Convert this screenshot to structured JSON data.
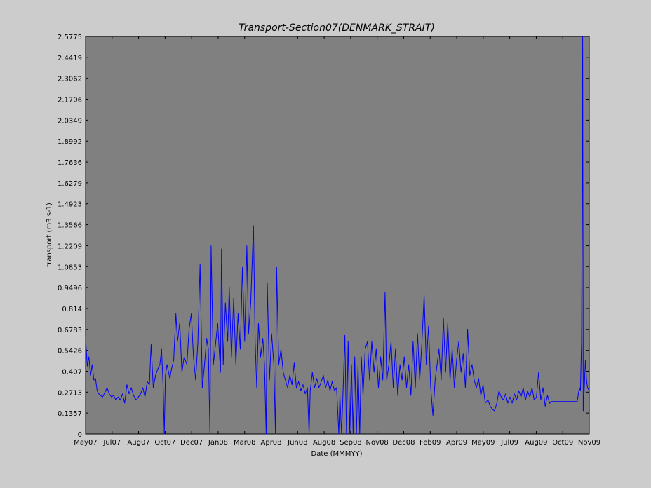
{
  "chart_data": {
    "type": "line",
    "title": "Transport-Section07(DENMARK_STRAIT)",
    "xlabel": "Date (MMMYY)",
    "ylabel": "transport (m3 s-1)",
    "x_ticks": [
      "May07",
      "Jul07",
      "Aug07",
      "Oct07",
      "Dec07",
      "Jan08",
      "Mar08",
      "Apr08",
      "Jun08",
      "Aug08",
      "Sep08",
      "Nov08",
      "Dec08",
      "Feb09",
      "Apr09",
      "May09",
      "Jul09",
      "Aug09",
      "Oct09",
      "Nov09"
    ],
    "y_ticks": [
      "0",
      "0.1357",
      "0.2713",
      "0.407",
      "0.5426",
      "0.6783",
      "0.814",
      "0.9496",
      "1.0853",
      "1.2209",
      "1.3566",
      "1.4923",
      "1.6279",
      "1.7636",
      "1.8992",
      "2.0349",
      "2.1706",
      "2.3062",
      "2.4419",
      "2.5775"
    ],
    "xlim": [
      "2007-05-01",
      "2009-11-01"
    ],
    "ylim": [
      0,
      2.5775
    ],
    "grid": false,
    "background_color": "#808080",
    "line_color": "#0000ff",
    "series": [
      {
        "points": [
          [
            "2007-05-01",
            0.62
          ],
          [
            "2007-05-04",
            0.44
          ],
          [
            "2007-05-07",
            0.5
          ],
          [
            "2007-05-10",
            0.38
          ],
          [
            "2007-05-13",
            0.45
          ],
          [
            "2007-05-16",
            0.35
          ],
          [
            "2007-05-19",
            0.36
          ],
          [
            "2007-05-22",
            0.28
          ],
          [
            "2007-05-25",
            0.26
          ],
          [
            "2007-05-28",
            0.25
          ],
          [
            "2007-06-01",
            0.24
          ],
          [
            "2007-06-05",
            0.27
          ],
          [
            "2007-06-09",
            0.3
          ],
          [
            "2007-06-13",
            0.26
          ],
          [
            "2007-06-17",
            0.24
          ],
          [
            "2007-06-21",
            0.25
          ],
          [
            "2007-06-25",
            0.22
          ],
          [
            "2007-06-29",
            0.24
          ],
          [
            "2007-07-03",
            0.22
          ],
          [
            "2007-07-07",
            0.26
          ],
          [
            "2007-07-11",
            0.2
          ],
          [
            "2007-07-15",
            0.32
          ],
          [
            "2007-07-19",
            0.26
          ],
          [
            "2007-07-23",
            0.3
          ],
          [
            "2007-07-27",
            0.25
          ],
          [
            "2007-08-01",
            0.22
          ],
          [
            "2007-08-05",
            0.24
          ],
          [
            "2007-08-09",
            0.26
          ],
          [
            "2007-08-13",
            0.3
          ],
          [
            "2007-08-17",
            0.24
          ],
          [
            "2007-08-21",
            0.34
          ],
          [
            "2007-08-25",
            0.32
          ],
          [
            "2007-08-28",
            0.58
          ],
          [
            "2007-09-01",
            0.3
          ],
          [
            "2007-09-05",
            0.38
          ],
          [
            "2007-09-09",
            0.42
          ],
          [
            "2007-09-13",
            0.45
          ],
          [
            "2007-09-16",
            0.55
          ],
          [
            "2007-09-19",
            0.3
          ],
          [
            "2007-09-21",
            0.0
          ],
          [
            "2007-09-23",
            0.38
          ],
          [
            "2007-09-26",
            0.45
          ],
          [
            "2007-10-01",
            0.36
          ],
          [
            "2007-10-04",
            0.42
          ],
          [
            "2007-10-08",
            0.48
          ],
          [
            "2007-10-12",
            0.78
          ],
          [
            "2007-10-15",
            0.6
          ],
          [
            "2007-10-19",
            0.72
          ],
          [
            "2007-10-23",
            0.4
          ],
          [
            "2007-10-27",
            0.5
          ],
          [
            "2007-11-01",
            0.45
          ],
          [
            "2007-11-05",
            0.68
          ],
          [
            "2007-11-09",
            0.78
          ],
          [
            "2007-11-13",
            0.5
          ],
          [
            "2007-11-17",
            0.35
          ],
          [
            "2007-11-21",
            0.6
          ],
          [
            "2007-11-25",
            1.1
          ],
          [
            "2007-11-29",
            0.3
          ],
          [
            "2007-12-03",
            0.45
          ],
          [
            "2007-12-07",
            0.62
          ],
          [
            "2007-12-10",
            0.55
          ],
          [
            "2007-12-13",
            0.0
          ],
          [
            "2007-12-15",
            1.22
          ],
          [
            "2007-12-19",
            0.45
          ],
          [
            "2007-12-23",
            0.58
          ],
          [
            "2007-12-27",
            0.72
          ],
          [
            "2008-01-01",
            0.4
          ],
          [
            "2008-01-03",
            1.2
          ],
          [
            "2008-01-06",
            0.45
          ],
          [
            "2008-01-10",
            0.85
          ],
          [
            "2008-01-14",
            0.6
          ],
          [
            "2008-01-17",
            0.95
          ],
          [
            "2008-01-21",
            0.5
          ],
          [
            "2008-01-25",
            0.88
          ],
          [
            "2008-01-29",
            0.45
          ],
          [
            "2008-02-02",
            0.78
          ],
          [
            "2008-02-06",
            0.55
          ],
          [
            "2008-02-10",
            1.08
          ],
          [
            "2008-02-14",
            0.6
          ],
          [
            "2008-02-18",
            1.22
          ],
          [
            "2008-02-21",
            0.65
          ],
          [
            "2008-02-25",
            0.85
          ],
          [
            "2008-03-01",
            1.35
          ],
          [
            "2008-03-04",
            0.6
          ],
          [
            "2008-03-07",
            0.3
          ],
          [
            "2008-03-10",
            0.72
          ],
          [
            "2008-03-14",
            0.5
          ],
          [
            "2008-03-18",
            0.62
          ],
          [
            "2008-03-21",
            0.45
          ],
          [
            "2008-03-24",
            0.0
          ],
          [
            "2008-03-26",
            0.98
          ],
          [
            "2008-03-30",
            0.35
          ],
          [
            "2008-04-03",
            0.65
          ],
          [
            "2008-04-07",
            0.45
          ],
          [
            "2008-04-10",
            0.0
          ],
          [
            "2008-04-12",
            1.08
          ],
          [
            "2008-04-16",
            0.45
          ],
          [
            "2008-04-20",
            0.55
          ],
          [
            "2008-04-24",
            0.4
          ],
          [
            "2008-04-28",
            0.35
          ],
          [
            "2008-05-02",
            0.3
          ],
          [
            "2008-05-06",
            0.38
          ],
          [
            "2008-05-10",
            0.32
          ],
          [
            "2008-05-14",
            0.46
          ],
          [
            "2008-05-18",
            0.3
          ],
          [
            "2008-05-22",
            0.34
          ],
          [
            "2008-05-26",
            0.28
          ],
          [
            "2008-05-30",
            0.32
          ],
          [
            "2008-06-03",
            0.26
          ],
          [
            "2008-06-07",
            0.3
          ],
          [
            "2008-06-10",
            0.0
          ],
          [
            "2008-06-12",
            0.28
          ],
          [
            "2008-06-16",
            0.4
          ],
          [
            "2008-06-20",
            0.3
          ],
          [
            "2008-06-24",
            0.36
          ],
          [
            "2008-06-28",
            0.3
          ],
          [
            "2008-07-02",
            0.34
          ],
          [
            "2008-07-06",
            0.38
          ],
          [
            "2008-07-10",
            0.3
          ],
          [
            "2008-07-14",
            0.35
          ],
          [
            "2008-07-18",
            0.28
          ],
          [
            "2008-07-22",
            0.34
          ],
          [
            "2008-07-26",
            0.28
          ],
          [
            "2008-07-30",
            0.3
          ],
          [
            "2008-08-03",
            0.0
          ],
          [
            "2008-08-05",
            0.25
          ],
          [
            "2008-08-08",
            0.0
          ],
          [
            "2008-08-11",
            0.3
          ],
          [
            "2008-08-14",
            0.64
          ],
          [
            "2008-08-17",
            0.0
          ],
          [
            "2008-08-20",
            0.6
          ],
          [
            "2008-08-23",
            0.0
          ],
          [
            "2008-08-26",
            0.45
          ],
          [
            "2008-08-29",
            0.0
          ],
          [
            "2008-09-01",
            0.5
          ],
          [
            "2008-09-04",
            0.0
          ],
          [
            "2008-09-07",
            0.45
          ],
          [
            "2008-09-10",
            0.0
          ],
          [
            "2008-09-13",
            0.5
          ],
          [
            "2008-09-16",
            0.25
          ],
          [
            "2008-09-20",
            0.55
          ],
          [
            "2008-09-24",
            0.6
          ],
          [
            "2008-09-28",
            0.35
          ],
          [
            "2008-10-02",
            0.6
          ],
          [
            "2008-10-06",
            0.4
          ],
          [
            "2008-10-10",
            0.55
          ],
          [
            "2008-10-14",
            0.3
          ],
          [
            "2008-10-18",
            0.5
          ],
          [
            "2008-10-22",
            0.35
          ],
          [
            "2008-10-26",
            0.92
          ],
          [
            "2008-10-29",
            0.35
          ],
          [
            "2008-11-02",
            0.45
          ],
          [
            "2008-11-06",
            0.6
          ],
          [
            "2008-11-10",
            0.3
          ],
          [
            "2008-11-14",
            0.55
          ],
          [
            "2008-11-18",
            0.25
          ],
          [
            "2008-11-22",
            0.45
          ],
          [
            "2008-11-26",
            0.35
          ],
          [
            "2008-11-30",
            0.5
          ],
          [
            "2008-12-04",
            0.3
          ],
          [
            "2008-12-08",
            0.45
          ],
          [
            "2008-12-12",
            0.25
          ],
          [
            "2008-12-16",
            0.6
          ],
          [
            "2008-12-20",
            0.3
          ],
          [
            "2008-12-24",
            0.65
          ],
          [
            "2008-12-28",
            0.35
          ],
          [
            "2009-01-01",
            0.6
          ],
          [
            "2009-01-05",
            0.9
          ],
          [
            "2009-01-09",
            0.45
          ],
          [
            "2009-01-13",
            0.7
          ],
          [
            "2009-01-17",
            0.3
          ],
          [
            "2009-01-21",
            0.12
          ],
          [
            "2009-01-25",
            0.35
          ],
          [
            "2009-02-01",
            0.55
          ],
          [
            "2009-02-05",
            0.35
          ],
          [
            "2009-02-09",
            0.75
          ],
          [
            "2009-02-13",
            0.4
          ],
          [
            "2009-02-17",
            0.72
          ],
          [
            "2009-02-21",
            0.35
          ],
          [
            "2009-02-25",
            0.55
          ],
          [
            "2009-03-01",
            0.3
          ],
          [
            "2009-03-05",
            0.48
          ],
          [
            "2009-03-09",
            0.6
          ],
          [
            "2009-03-13",
            0.4
          ],
          [
            "2009-03-17",
            0.52
          ],
          [
            "2009-03-21",
            0.3
          ],
          [
            "2009-03-25",
            0.68
          ],
          [
            "2009-03-29",
            0.38
          ],
          [
            "2009-04-02",
            0.45
          ],
          [
            "2009-04-06",
            0.35
          ],
          [
            "2009-04-10",
            0.3
          ],
          [
            "2009-04-14",
            0.36
          ],
          [
            "2009-04-18",
            0.25
          ],
          [
            "2009-04-22",
            0.32
          ],
          [
            "2009-04-26",
            0.2
          ],
          [
            "2009-05-01",
            0.22
          ],
          [
            "2009-05-05",
            0.18
          ],
          [
            "2009-05-09",
            0.16
          ],
          [
            "2009-05-13",
            0.15
          ],
          [
            "2009-05-17",
            0.2
          ],
          [
            "2009-05-21",
            0.28
          ],
          [
            "2009-05-25",
            0.24
          ],
          [
            "2009-05-29",
            0.22
          ],
          [
            "2009-06-02",
            0.26
          ],
          [
            "2009-06-06",
            0.2
          ],
          [
            "2009-06-10",
            0.24
          ],
          [
            "2009-06-14",
            0.2
          ],
          [
            "2009-06-18",
            0.26
          ],
          [
            "2009-06-22",
            0.22
          ],
          [
            "2009-06-26",
            0.28
          ],
          [
            "2009-06-30",
            0.24
          ],
          [
            "2009-07-04",
            0.3
          ],
          [
            "2009-07-08",
            0.22
          ],
          [
            "2009-07-12",
            0.28
          ],
          [
            "2009-07-16",
            0.24
          ],
          [
            "2009-07-20",
            0.3
          ],
          [
            "2009-07-24",
            0.22
          ],
          [
            "2009-07-28",
            0.24
          ],
          [
            "2009-08-01",
            0.4
          ],
          [
            "2009-08-05",
            0.22
          ],
          [
            "2009-08-09",
            0.3
          ],
          [
            "2009-08-13",
            0.18
          ],
          [
            "2009-08-17",
            0.25
          ],
          [
            "2009-08-21",
            0.2
          ],
          [
            "2009-08-25",
            0.21
          ],
          [
            "2009-09-01",
            0.21
          ],
          [
            "2009-09-15",
            0.21
          ],
          [
            "2009-10-01",
            0.21
          ],
          [
            "2009-10-10",
            0.21
          ],
          [
            "2009-10-14",
            0.3
          ],
          [
            "2009-10-16",
            0.28
          ],
          [
            "2009-10-18",
            0.6
          ],
          [
            "2009-10-19",
            1.4
          ],
          [
            "2009-10-20",
            2.5775
          ],
          [
            "2009-10-21",
            0.15
          ],
          [
            "2009-10-23",
            0.3
          ],
          [
            "2009-10-25",
            0.48
          ],
          [
            "2009-10-27",
            0.35
          ],
          [
            "2009-10-29",
            0.3
          ],
          [
            "2009-11-01",
            0.28
          ]
        ]
      }
    ]
  }
}
